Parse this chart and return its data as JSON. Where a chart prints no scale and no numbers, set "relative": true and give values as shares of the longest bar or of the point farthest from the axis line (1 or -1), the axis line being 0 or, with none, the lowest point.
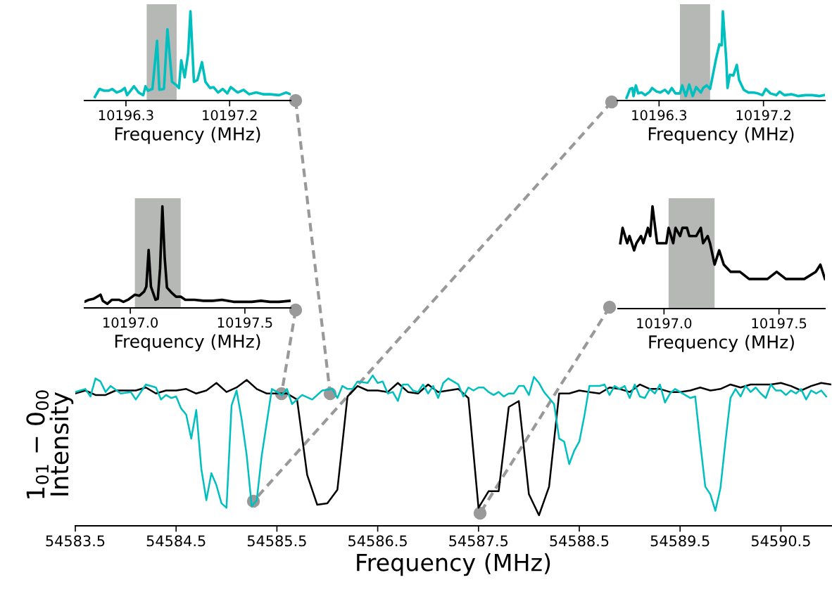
{
  "chart_data": [
    {
      "type": "line",
      "relative": true,
      "xlabel": "Frequency (MHz)",
      "ylabel": "1$_{01}$ − 0$_{00}$\nIntensity",
      "xlim": [
        54583.5,
        54591.0
      ],
      "xticks": [
        54583.5,
        54584.5,
        54585.5,
        54586.5,
        54587.5,
        54588.5,
        54589.5,
        54590.5
      ],
      "tick_labels": "x",
      "grid": false,
      "legend": false,
      "series": [
        {
          "color": "#000000",
          "x": [
            54583.5,
            54583.6,
            54583.7,
            54583.8,
            54583.9,
            54584.0,
            54584.1,
            54584.2,
            54584.3,
            54584.4,
            54584.5,
            54584.6,
            54584.7,
            54584.8,
            54584.9,
            54585.0,
            54585.1,
            54585.2,
            54585.3,
            54585.4,
            54585.5,
            54585.6,
            54585.7,
            54585.8,
            54585.9,
            54586.0,
            54586.1,
            54586.2,
            54586.3,
            54586.4,
            54586.5,
            54586.6,
            54586.7,
            54586.8,
            54586.9,
            54587.0,
            54587.1,
            54587.2,
            54587.3,
            54587.4,
            54587.5,
            54587.6,
            54587.7,
            54587.8,
            54587.9,
            54588.0,
            54588.1,
            54588.2,
            54588.3,
            54588.4,
            54588.5,
            54588.6,
            54588.7,
            54588.8,
            54588.9,
            54589.0,
            54589.1,
            54589.2,
            54589.3,
            54589.4,
            54589.5,
            54589.6,
            54589.7,
            54589.8,
            54589.9,
            54590.0,
            54590.1,
            54590.2,
            54590.3,
            54590.4,
            54590.5,
            54590.6,
            54590.7,
            54590.8,
            54590.9,
            54591.0
          ],
          "values": [
            0.88,
            0.9,
            0.87,
            0.87,
            0.9,
            0.9,
            0.9,
            0.92,
            0.88,
            0.9,
            0.9,
            0.91,
            0.88,
            0.9,
            0.95,
            0.89,
            0.92,
            0.97,
            0.91,
            0.88,
            0.88,
            0.88,
            0.84,
            0.34,
            0.14,
            0.15,
            0.24,
            0.86,
            0.93,
            0.9,
            0.9,
            0.89,
            0.95,
            0.89,
            0.88,
            0.94,
            0.89,
            0.9,
            0.91,
            0.85,
            0.12,
            0.23,
            0.23,
            0.79,
            0.83,
            0.21,
            0.07,
            0.26,
            0.88,
            0.88,
            0.9,
            0.89,
            0.88,
            0.92,
            0.91,
            0.89,
            0.94,
            0.91,
            0.91,
            0.89,
            0.89,
            0.9,
            0.92,
            0.9,
            0.91,
            0.94,
            0.92,
            0.94,
            0.94,
            0.94,
            0.95,
            0.93,
            0.9,
            0.93,
            0.95,
            0.94
          ]
        },
        {
          "color": "#00bfbf",
          "x": [
            54583.5,
            54583.55,
            54583.6,
            54583.65,
            54583.7,
            54583.75,
            54583.8,
            54583.85,
            54583.95,
            54584.05,
            54584.1,
            54584.2,
            54584.3,
            54584.35,
            54584.4,
            54584.45,
            54584.5,
            54584.55,
            54584.6,
            54584.65,
            54584.7,
            54584.75,
            54584.8,
            54584.85,
            54584.9,
            54584.95,
            54585.0,
            54585.05,
            54585.1,
            54585.15,
            54585.2,
            54585.25,
            54585.3,
            54585.35,
            54585.45,
            54585.55,
            54585.6,
            54585.65,
            54585.7,
            54585.75,
            54585.85,
            54585.95,
            54586.05,
            54586.1,
            54586.15,
            54586.2,
            54586.25,
            54586.3,
            54586.4,
            54586.45,
            54586.5,
            54586.55,
            54586.6,
            54586.65,
            54586.7,
            54586.75,
            54586.8,
            54586.85,
            54586.9,
            54586.95,
            54587.0,
            54587.05,
            54587.1,
            54587.15,
            54587.2,
            54587.3,
            54587.35,
            54587.4,
            54587.45,
            54587.5,
            54587.55,
            54587.6,
            54587.65,
            54587.7,
            54587.75,
            54587.8,
            54587.85,
            54587.9,
            54587.95,
            54588.0,
            54588.05,
            54588.1,
            54588.15,
            54588.2,
            54588.25,
            54588.3,
            54588.35,
            54588.4,
            54588.45,
            54588.5,
            54588.55,
            54588.6,
            54588.7,
            54588.75,
            54588.8,
            54588.85,
            54588.9,
            54588.95,
            54589.0,
            54589.05,
            54589.1,
            54589.15,
            54589.2,
            54589.25,
            54589.3,
            54589.35,
            54589.4,
            54589.45,
            54589.5,
            54589.6,
            54589.65,
            54589.7,
            54589.75,
            54589.8,
            54589.85,
            54589.9,
            54589.95,
            54590.0,
            54590.05,
            54590.1,
            54590.15,
            54590.2,
            54590.25,
            54590.3,
            54590.35,
            54590.4,
            54590.45,
            54590.5,
            54590.55,
            54590.6,
            54590.65,
            54590.7,
            54590.75,
            54590.8,
            54590.85,
            54590.9,
            54590.95
          ],
          "values": [
            0.89,
            0.9,
            0.91,
            0.86,
            0.98,
            0.96,
            0.89,
            0.93,
            0.88,
            0.89,
            0.84,
            0.94,
            0.92,
            0.84,
            0.87,
            0.85,
            0.86,
            0.78,
            0.74,
            0.58,
            0.77,
            0.38,
            0.17,
            0.35,
            0.27,
            0.15,
            0.12,
            0.8,
            0.9,
            0.71,
            0.47,
            0.13,
            0.17,
            0.47,
            0.91,
            0.87,
            0.91,
            0.81,
            0.84,
            0.87,
            0.84,
            0.9,
            0.91,
            0.85,
            0.93,
            0.91,
            0.91,
            0.96,
            0.95,
            1.0,
            0.95,
            0.96,
            0.88,
            0.89,
            0.83,
            0.94,
            0.94,
            0.9,
            0.89,
            0.94,
            0.88,
            0.93,
            0.85,
            0.95,
            0.98,
            0.94,
            0.86,
            0.92,
            0.9,
            0.92,
            0.92,
            0.89,
            0.87,
            0.89,
            0.86,
            0.88,
            0.88,
            0.93,
            0.93,
            0.87,
            0.99,
            0.95,
            0.89,
            0.85,
            0.81,
            0.58,
            0.56,
            0.41,
            0.5,
            0.56,
            0.73,
            0.93,
            0.93,
            0.94,
            0.87,
            0.93,
            0.91,
            0.93,
            0.85,
            0.94,
            0.86,
            0.85,
            0.91,
            0.88,
            0.94,
            0.82,
            0.88,
            0.91,
            0.89,
            0.85,
            0.86,
            0.55,
            0.26,
            0.21,
            0.1,
            0.25,
            0.56,
            0.85,
            0.91,
            0.86,
            0.93,
            0.89,
            0.92,
            0.88,
            0.85,
            0.94,
            0.9,
            0.9,
            0.87,
            0.9,
            0.88,
            0.91,
            0.84,
            0.9,
            0.88,
            0.9,
            0.86
          ]
        }
      ]
    },
    {
      "type": "line",
      "relative": true,
      "xlabel": "Frequency (MHz)",
      "xlim": [
        10195.94,
        10197.73
      ],
      "xticks": [
        10196.3,
        10197.2
      ],
      "tick_labels": "x",
      "grid": false,
      "legend": false,
      "bands": [
        {
          "axis": "x",
          "from": 10196.48,
          "to": 10196.74,
          "color": "#a9aba9"
        }
      ],
      "series": [
        {
          "color": "#00bfbf",
          "x": [
            10196.03,
            10196.07,
            10196.11,
            10196.15,
            10196.18,
            10196.22,
            10196.26,
            10196.29,
            10196.31,
            10196.34,
            10196.37,
            10196.41,
            10196.45,
            10196.47,
            10196.49,
            10196.53,
            10196.57,
            10196.59,
            10196.63,
            10196.66,
            10196.7,
            10196.74,
            10196.76,
            10196.78,
            10196.81,
            10196.84,
            10196.86,
            10196.89,
            10196.92,
            10196.96,
            10196.99,
            10197.03,
            10197.06,
            10197.1,
            10197.14,
            10197.18,
            10197.21,
            10197.27,
            10197.32,
            10197.37,
            10197.43,
            10197.49,
            10197.55,
            10197.63,
            10197.69,
            10197.73
          ],
          "values": [
            0.04,
            0.13,
            0.11,
            0.11,
            0.13,
            0.09,
            0.11,
            0.14,
            0.06,
            0.11,
            0.16,
            0.09,
            0.06,
            0.16,
            0.11,
            0.13,
            0.67,
            0.12,
            0.13,
            0.8,
            0.21,
            0.17,
            0.14,
            0.45,
            0.26,
            0.53,
            1.0,
            0.21,
            0.23,
            0.43,
            0.21,
            0.14,
            0.15,
            0.09,
            0.13,
            0.08,
            0.15,
            0.09,
            0.12,
            0.07,
            0.09,
            0.07,
            0.07,
            0.06,
            0.09,
            0.07
          ]
        }
      ]
    },
    {
      "type": "line",
      "relative": true,
      "xlabel": "Frequency (MHz)",
      "xlim": [
        10195.94,
        10197.73
      ],
      "xticks": [
        10196.3,
        10197.2
      ],
      "tick_labels": "x",
      "grid": false,
      "legend": false,
      "bands": [
        {
          "axis": "x",
          "from": 10196.48,
          "to": 10196.74,
          "color": "#a9aba9"
        }
      ],
      "series": [
        {
          "color": "#00bfbf",
          "x": [
            10196.02,
            10196.05,
            10196.07,
            10196.08,
            10196.1,
            10196.12,
            10196.15,
            10196.18,
            10196.22,
            10196.24,
            10196.28,
            10196.31,
            10196.35,
            10196.38,
            10196.41,
            10196.44,
            10196.48,
            10196.5,
            10196.53,
            10196.56,
            10196.59,
            10196.62,
            10196.66,
            10196.68,
            10196.71,
            10196.74,
            10196.79,
            10196.82,
            10196.84,
            10196.85,
            10196.88,
            10196.89,
            10196.91,
            10196.94,
            10196.97,
            10196.99,
            10197.03,
            10197.07,
            10197.11,
            10197.15,
            10197.19,
            10197.22,
            10197.26,
            10197.31,
            10197.34,
            10197.38,
            10197.44,
            10197.5,
            10197.56,
            10197.62,
            10197.68,
            10197.72
          ],
          "values": [
            0.03,
            0.13,
            0.14,
            0.05,
            0.17,
            0.08,
            0.09,
            0.06,
            0.1,
            0.14,
            0.1,
            0.09,
            0.12,
            0.08,
            0.14,
            0.08,
            0.08,
            0.17,
            0.05,
            0.18,
            0.05,
            0.15,
            0.09,
            0.14,
            0.17,
            0.13,
            0.46,
            0.63,
            0.62,
            1.0,
            0.44,
            0.14,
            0.29,
            0.28,
            0.4,
            0.23,
            0.12,
            0.09,
            0.09,
            0.08,
            0.06,
            0.13,
            0.08,
            0.06,
            0.1,
            0.06,
            0.07,
            0.05,
            0.06,
            0.06,
            0.05,
            0.06
          ]
        }
      ]
    },
    {
      "type": "line",
      "relative": true,
      "xlabel": "Frequency (MHz)",
      "xlim": [
        10196.8,
        10197.7
      ],
      "xticks": [
        {
          "value": 10197.0,
          "label": "10197.0"
        },
        10197.5
      ],
      "tick_labels": "x",
      "grid": false,
      "legend": false,
      "bands": [
        {
          "axis": "x",
          "from": 10197.02,
          "to": 10197.22,
          "color": "#a9aba9"
        }
      ],
      "series": [
        {
          "color": "#000000",
          "x": [
            10196.8,
            10196.82,
            10196.84,
            10196.87,
            10196.88,
            10196.9,
            10196.92,
            10196.95,
            10196.97,
            10196.99,
            10197.02,
            10197.04,
            10197.06,
            10197.07,
            10197.08,
            10197.09,
            10197.11,
            10197.12,
            10197.13,
            10197.14,
            10197.15,
            10197.16,
            10197.18,
            10197.2,
            10197.22,
            10197.24,
            10197.28,
            10197.32,
            10197.36,
            10197.4,
            10197.45,
            10197.49,
            10197.53,
            10197.57,
            10197.61,
            10197.65,
            10197.7
          ],
          "values": [
            0.06,
            0.08,
            0.09,
            0.13,
            0.07,
            0.04,
            0.08,
            0.08,
            0.06,
            0.08,
            0.13,
            0.12,
            0.16,
            0.21,
            0.57,
            0.21,
            0.08,
            0.09,
            0.39,
            1.0,
            0.5,
            0.2,
            0.15,
            0.11,
            0.11,
            0.08,
            0.08,
            0.07,
            0.07,
            0.08,
            0.06,
            0.06,
            0.06,
            0.07,
            0.06,
            0.06,
            0.07
          ]
        }
      ]
    },
    {
      "type": "line",
      "relative": true,
      "xlabel": "Frequency (MHz)",
      "xlim": [
        10196.8,
        10197.7
      ],
      "xticks": [
        {
          "value": 10197.0,
          "label": "10197.0"
        },
        10197.5
      ],
      "tick_labels": "x",
      "grid": false,
      "legend": false,
      "bands": [
        {
          "axis": "x",
          "from": 10197.02,
          "to": 10197.22,
          "color": "#a9aba9"
        }
      ],
      "series": [
        {
          "color": "#000000",
          "x": [
            10196.81,
            10196.82,
            10196.84,
            10196.85,
            10196.87,
            10196.88,
            10196.9,
            10196.91,
            10196.93,
            10196.94,
            10196.95,
            10196.97,
            10196.98,
            10197.01,
            10197.02,
            10197.04,
            10197.05,
            10197.07,
            10197.08,
            10197.1,
            10197.11,
            10197.13,
            10197.14,
            10197.16,
            10197.17,
            10197.19,
            10197.2,
            10197.22,
            10197.24,
            10197.26,
            10197.29,
            10197.33,
            10197.37,
            10197.41,
            10197.45,
            10197.49,
            10197.53,
            10197.57,
            10197.61,
            10197.66,
            10197.68,
            10197.7
          ],
          "values": [
            0.64,
            0.79,
            0.64,
            0.71,
            0.57,
            0.64,
            0.71,
            0.64,
            0.79,
            0.71,
            1.0,
            0.64,
            0.64,
            0.64,
            0.79,
            0.64,
            0.79,
            0.71,
            0.79,
            0.79,
            0.71,
            0.71,
            0.71,
            0.79,
            0.64,
            0.71,
            0.64,
            0.43,
            0.57,
            0.43,
            0.36,
            0.36,
            0.29,
            0.29,
            0.29,
            0.36,
            0.29,
            0.29,
            0.29,
            0.36,
            0.43,
            0.29
          ]
        }
      ]
    }
  ]
}
